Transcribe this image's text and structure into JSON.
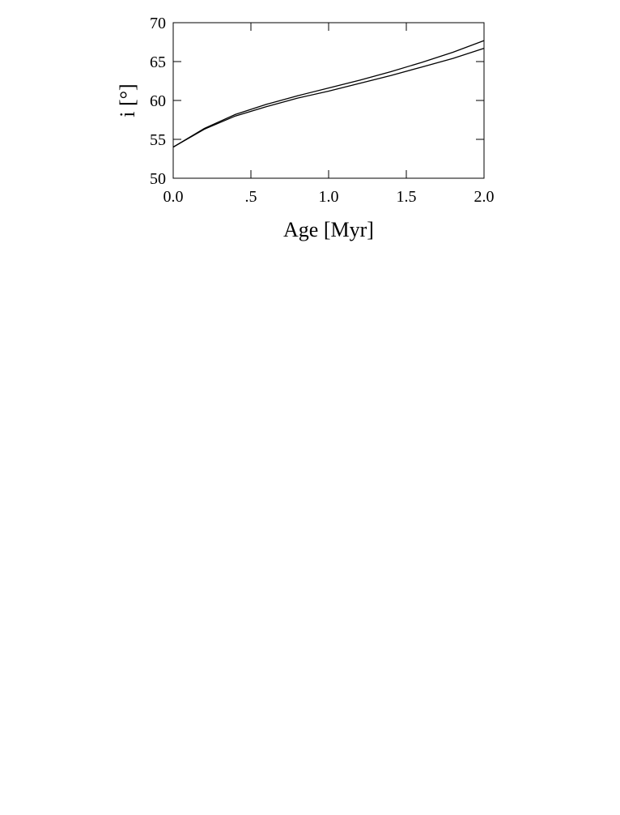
{
  "chart_data": {
    "type": "line",
    "x_label": "Age [Myr]",
    "y_label": "i [°]",
    "x": [
      0.0,
      0.2,
      0.4,
      0.6,
      0.8,
      1.0,
      1.2,
      1.4,
      1.6,
      1.8,
      2.0
    ],
    "series": [
      {
        "color": "#000000",
        "values": [
          54.0,
          56.4,
          58.2,
          59.5,
          60.6,
          61.6,
          62.6,
          63.7,
          64.9,
          66.2,
          67.7
        ]
      },
      {
        "color": "#000000",
        "values": [
          54.0,
          56.3,
          58.0,
          59.2,
          60.3,
          61.2,
          62.2,
          63.2,
          64.3,
          65.4,
          66.7
        ]
      }
    ],
    "xlim": [
      0,
      2
    ],
    "ylim": [
      50,
      70
    ],
    "xticks": [
      {
        "value": 0,
        "label": "0.0"
      },
      {
        "value": 0.5,
        "label": ".5"
      },
      {
        "value": 1,
        "label": "1.0"
      },
      {
        "value": 1.5,
        "label": "1.5"
      },
      {
        "value": 2,
        "label": "2.0"
      }
    ],
    "yticks": [
      50,
      55,
      60,
      65,
      70
    ],
    "grid": false
  }
}
